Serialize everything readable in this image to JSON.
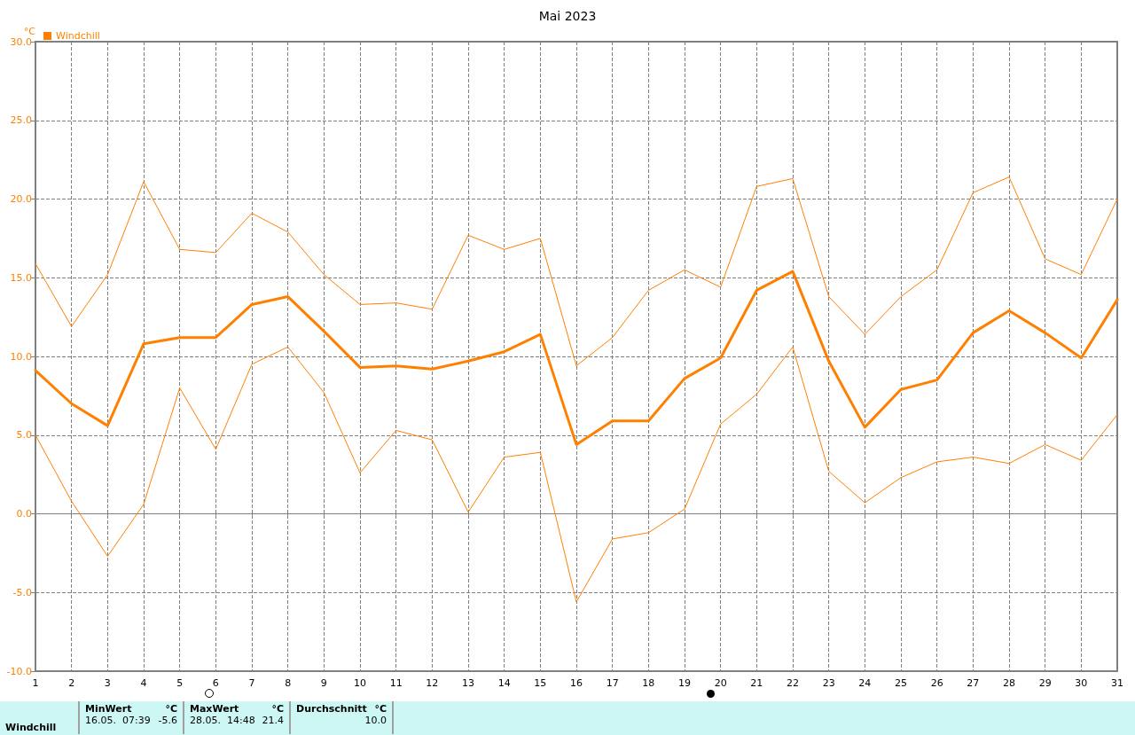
{
  "chart_data": {
    "type": "line",
    "title": "Mai 2023",
    "ylabel": "°C",
    "legend": "top left",
    "grid": true,
    "marker": "none",
    "line_style": "solid",
    "x": [
      1,
      2,
      3,
      4,
      5,
      6,
      7,
      8,
      9,
      10,
      11,
      12,
      13,
      14,
      15,
      16,
      17,
      18,
      19,
      20,
      21,
      22,
      23,
      24,
      25,
      26,
      27,
      28,
      29,
      30,
      31
    ],
    "xlim": [
      1,
      31
    ],
    "xticks": [
      1,
      2,
      3,
      4,
      5,
      6,
      7,
      8,
      9,
      10,
      11,
      12,
      13,
      14,
      15,
      16,
      17,
      18,
      19,
      20,
      21,
      22,
      23,
      24,
      25,
      26,
      27,
      28,
      29,
      30,
      31
    ],
    "ylim": [
      -10,
      30
    ],
    "yticks": [
      {
        "value": -10,
        "label": "-10.0"
      },
      {
        "value": -5,
        "label": "-5.0"
      },
      {
        "value": 0,
        "label": "0.0"
      },
      {
        "value": 5,
        "label": "5.0"
      },
      {
        "value": 10,
        "label": "10.0"
      },
      {
        "value": 15,
        "label": "15.0"
      },
      {
        "value": 20,
        "label": "20.0"
      },
      {
        "value": 25,
        "label": "25.0"
      },
      {
        "value": 30,
        "label": "30.0"
      }
    ],
    "series": [
      {
        "color": "#ff8000",
        "values": [
          15.9,
          11.9,
          15.2,
          21.1,
          16.8,
          16.6,
          19.1,
          17.9,
          15.2,
          13.3,
          13.4,
          13.0,
          17.7,
          16.8,
          17.5,
          9.4,
          11.2,
          14.2,
          15.5,
          14.4,
          20.8,
          21.3,
          13.8,
          11.4,
          13.8,
          15.5,
          20.4,
          21.4,
          16.2,
          15.2,
          20.0
        ]
      },
      {
        "name": "Windchill",
        "color": "#ff8000",
        "values": [
          9.1,
          7.0,
          5.6,
          10.8,
          11.2,
          11.2,
          13.3,
          13.8,
          11.6,
          9.3,
          9.4,
          9.2,
          9.7,
          10.3,
          11.4,
          4.4,
          5.9,
          5.9,
          8.6,
          9.9,
          14.2,
          15.4,
          9.7,
          5.5,
          7.9,
          8.5,
          11.5,
          12.9,
          11.5,
          9.9,
          13.6
        ]
      },
      {
        "color": "#ff8000",
        "values": [
          5.0,
          0.8,
          -2.7,
          0.6,
          8.0,
          4.1,
          9.5,
          10.6,
          7.7,
          2.6,
          5.3,
          4.7,
          0.1,
          3.6,
          3.9,
          -5.6,
          -1.6,
          -1.2,
          0.3,
          5.7,
          7.6,
          10.6,
          2.7,
          0.7,
          2.3,
          3.3,
          3.6,
          3.2,
          4.4,
          3.4,
          6.3
        ]
      }
    ],
    "annotations": [
      "Windchill",
      "MinWert",
      "°C",
      "16.05.  07:39",
      "-5.6",
      "MaxWert",
      "°C",
      "28.05.  14:48",
      "21.4",
      "Durchschnitt",
      "°C",
      "10.0"
    ]
  }
}
